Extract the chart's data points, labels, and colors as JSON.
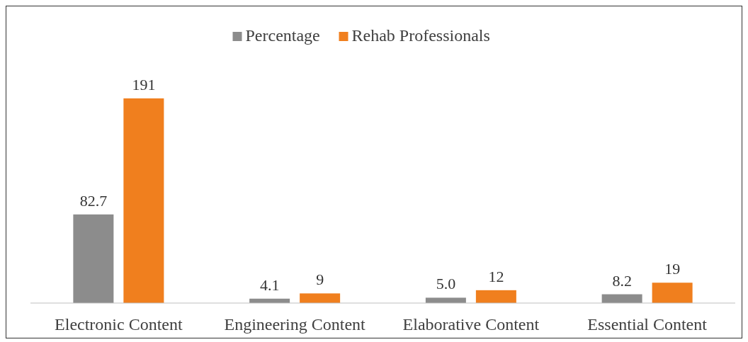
{
  "chart_data": {
    "type": "bar",
    "categories": [
      "Electronic Content",
      "Engineering Content",
      "Elaborative Content",
      "Essential Content"
    ],
    "series": [
      {
        "name": "Percentage",
        "color": "#8c8c8c",
        "values": [
          82.7,
          4.1,
          5.0,
          8.2
        ],
        "value_labels": [
          "82.7",
          "4.1",
          "5.0",
          "8.2"
        ]
      },
      {
        "name": "Rehab Professionals",
        "color": "#f07f1e",
        "values": [
          191,
          9,
          12,
          19
        ],
        "value_labels": [
          "191",
          "9",
          "12",
          "19"
        ]
      }
    ],
    "legend": "top"
  }
}
